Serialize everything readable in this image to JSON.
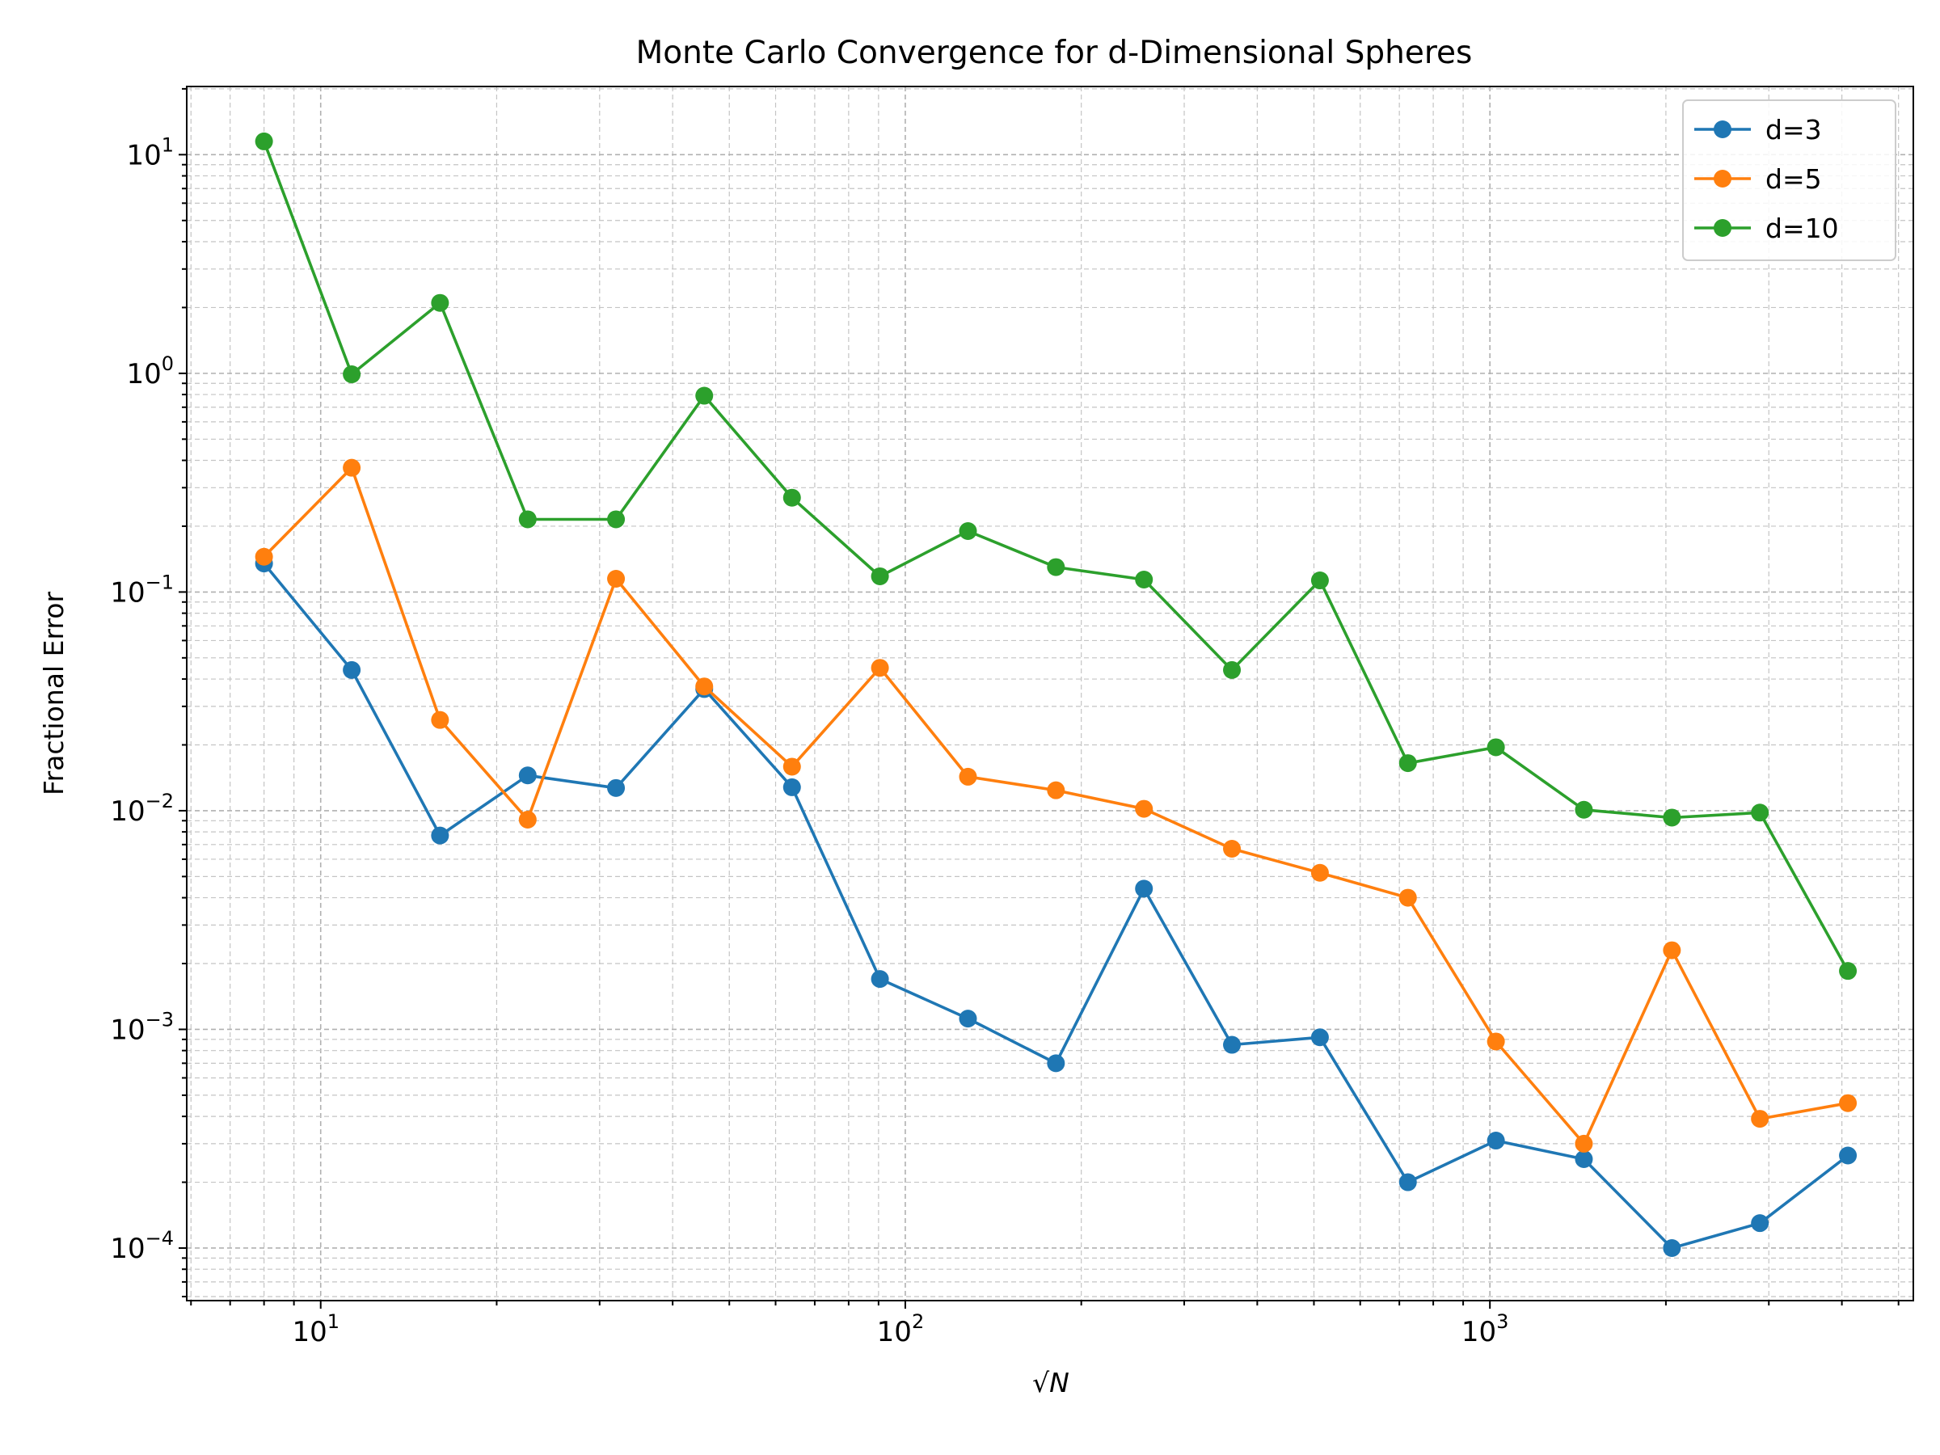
{
  "chart_data": {
    "type": "line",
    "title": "Monte Carlo Convergence for d-Dimensional Spheres",
    "xlabel": "√N",
    "ylabel": "Fractional Error",
    "xscale": "log",
    "yscale": "log",
    "xlim": [
      5.9,
      5300
    ],
    "ylim": [
      5.75e-05,
      20.5
    ],
    "grid": "on (major and minor, dashed)",
    "legend_position": "top-right",
    "xticks": [
      {
        "value": 10,
        "base": "10",
        "exp": "1"
      },
      {
        "value": 100,
        "base": "10",
        "exp": "2"
      },
      {
        "value": 1000,
        "base": "10",
        "exp": "3"
      }
    ],
    "yticks": [
      {
        "value": 10,
        "base": "10",
        "exp": "1"
      },
      {
        "value": 1,
        "base": "10",
        "exp": "0"
      },
      {
        "value": 0.1,
        "base": "10",
        "exp": "−1"
      },
      {
        "value": 0.01,
        "base": "10",
        "exp": "−2"
      },
      {
        "value": 0.001,
        "base": "10",
        "exp": "−3"
      },
      {
        "value": 0.0001,
        "base": "10",
        "exp": "−4"
      }
    ],
    "x": [
      8,
      11.3,
      16,
      22.6,
      32,
      45.3,
      64,
      90.5,
      128,
      181,
      256,
      362,
      512,
      724,
      1024,
      1448,
      2048,
      2896,
      4096
    ],
    "series": [
      {
        "name": "d=3",
        "color": "#1f77b4",
        "values": [
          0.135,
          0.044,
          0.0077,
          0.0145,
          0.0127,
          0.036,
          0.0128,
          0.0017,
          0.00112,
          0.0007,
          0.0044,
          0.00085,
          0.00092,
          0.0002,
          0.00031,
          0.000255,
          0.0001,
          0.00013,
          0.000265
        ]
      },
      {
        "name": "d=5",
        "color": "#ff7f0e",
        "values": [
          0.145,
          0.37,
          0.026,
          0.0091,
          0.115,
          0.037,
          0.0159,
          0.045,
          0.0143,
          0.0124,
          0.0102,
          0.0067,
          0.0052,
          0.004,
          0.00088,
          0.0003,
          0.0023,
          0.00039,
          0.00046
        ]
      },
      {
        "name": "d=10",
        "color": "#2ca02c",
        "values": [
          11.5,
          0.99,
          2.1,
          0.215,
          0.215,
          0.79,
          0.27,
          0.118,
          0.19,
          0.13,
          0.114,
          0.044,
          0.113,
          0.0165,
          0.0195,
          0.0101,
          0.0093,
          0.0098,
          0.00185
        ]
      }
    ]
  }
}
